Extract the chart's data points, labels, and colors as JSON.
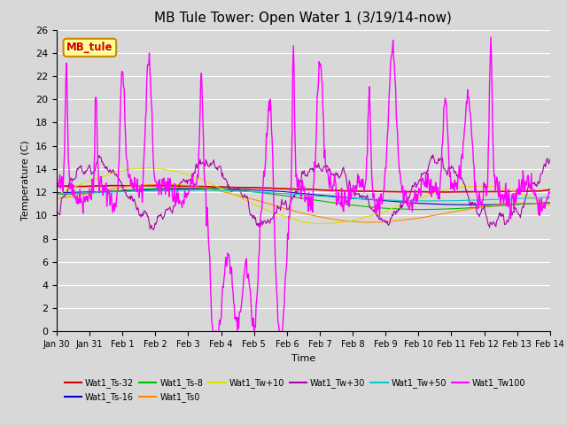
{
  "title": "MB Tule Tower: Open Water 1 (3/19/14-now)",
  "xlabel": "Time",
  "ylabel": "Temperature (C)",
  "ylim": [
    0,
    26
  ],
  "yticks": [
    0,
    2,
    4,
    6,
    8,
    10,
    12,
    14,
    16,
    18,
    20,
    22,
    24,
    26
  ],
  "series": [
    {
      "name": "Wat1_Ts-32",
      "color": "#cc0000"
    },
    {
      "name": "Wat1_Ts-16",
      "color": "#0000cc"
    },
    {
      "name": "Wat1_Ts-8",
      "color": "#00bb00"
    },
    {
      "name": "Wat1_Ts0",
      "color": "#ff8800"
    },
    {
      "name": "Wat1_Tw+10",
      "color": "#dddd00"
    },
    {
      "name": "Wat1_Tw+30",
      "color": "#aa00aa"
    },
    {
      "name": "Wat1_Tw+50",
      "color": "#00cccc"
    },
    {
      "name": "Wat1_Tw100",
      "color": "#ff00ff"
    }
  ],
  "annotation_box": {
    "label": "MB_tule",
    "text_color": "#cc0000",
    "bg_color": "#ffff99",
    "edge_color": "#cc8800"
  },
  "xtick_labels": [
    "Jan 30",
    "Jan 31",
    "Feb 1",
    "Feb 2",
    "Feb 3",
    "Feb 4",
    "Feb 5",
    "Feb 6",
    "Feb 7",
    "Feb 8",
    "Feb 9",
    "Feb 10",
    "Feb 11",
    "Feb 12",
    "Feb 13",
    "Feb 14"
  ],
  "bg_color": "#d8d8d8",
  "grid_color": "#ffffff",
  "title_fontsize": 11,
  "axis_fontsize": 8,
  "tick_fontsize": 8
}
